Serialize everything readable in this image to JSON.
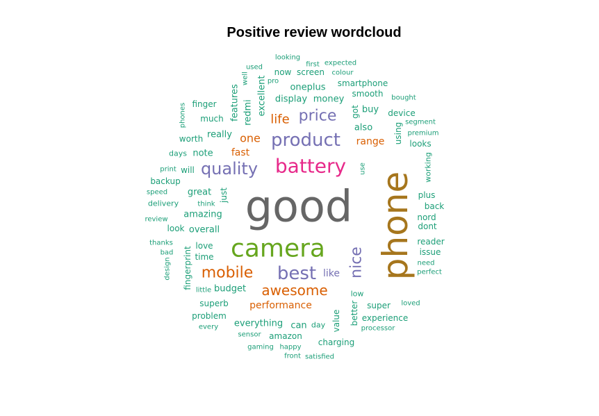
{
  "chart_data": {
    "type": "wordcloud",
    "title": "Positive review wordcloud",
    "palette": {
      "teal": "#1b9e77",
      "orange": "#d95f02",
      "purple": "#7570b3",
      "pink": "#e7298a",
      "green": "#66a61e",
      "mustard": "#a6761d",
      "gray": "#666666"
    },
    "words": [
      {
        "text": "good",
        "size": 62,
        "color": "gray"
      },
      {
        "text": "phone",
        "size": 50,
        "color": "mustard",
        "vertical": true
      },
      {
        "text": "camera",
        "size": 36,
        "color": "green"
      },
      {
        "text": "battery",
        "size": 28,
        "color": "pink"
      },
      {
        "text": "product",
        "size": 26,
        "color": "purple"
      },
      {
        "text": "best",
        "size": 26,
        "color": "purple"
      },
      {
        "text": "quality",
        "size": 24,
        "color": "purple"
      },
      {
        "text": "price",
        "size": 22,
        "color": "purple"
      },
      {
        "text": "mobile",
        "size": 22,
        "color": "orange"
      },
      {
        "text": "nice",
        "size": 22,
        "color": "purple",
        "vertical": true
      },
      {
        "text": "awesome",
        "size": 20,
        "color": "orange"
      },
      {
        "text": "life",
        "size": 18,
        "color": "orange"
      },
      {
        "text": "one",
        "size": 16,
        "color": "orange"
      },
      {
        "text": "like",
        "size": 14,
        "color": "purple"
      },
      {
        "text": "fast",
        "size": 14,
        "color": "orange"
      },
      {
        "text": "range",
        "size": 14,
        "color": "orange"
      },
      {
        "text": "performance",
        "size": 14,
        "color": "orange"
      },
      {
        "text": "great",
        "size": 13,
        "color": "teal"
      },
      {
        "text": "amazing",
        "size": 13,
        "color": "teal"
      },
      {
        "text": "overall",
        "size": 13,
        "color": "teal"
      },
      {
        "text": "budget",
        "size": 13,
        "color": "teal"
      },
      {
        "text": "really",
        "size": 13,
        "color": "teal"
      },
      {
        "text": "note",
        "size": 13,
        "color": "teal"
      },
      {
        "text": "also",
        "size": 13,
        "color": "teal"
      },
      {
        "text": "buy",
        "size": 13,
        "color": "teal"
      },
      {
        "text": "money",
        "size": 13,
        "color": "teal"
      },
      {
        "text": "display",
        "size": 13,
        "color": "teal"
      },
      {
        "text": "oneplus",
        "size": 13,
        "color": "teal"
      },
      {
        "text": "excellent",
        "size": 13,
        "color": "teal",
        "vertical": true
      },
      {
        "text": "features",
        "size": 13,
        "color": "teal",
        "vertical": true
      },
      {
        "text": "redmi",
        "size": 13,
        "color": "teal",
        "vertical": true
      },
      {
        "text": "can",
        "size": 13,
        "color": "teal"
      },
      {
        "text": "everything",
        "size": 13,
        "color": "teal"
      },
      {
        "text": "charging",
        "size": 12,
        "color": "teal"
      },
      {
        "text": "amazon",
        "size": 12,
        "color": "teal"
      },
      {
        "text": "value",
        "size": 12,
        "color": "teal",
        "vertical": true
      },
      {
        "text": "better",
        "size": 12,
        "color": "teal",
        "vertical": true
      },
      {
        "text": "super",
        "size": 12,
        "color": "teal"
      },
      {
        "text": "experience",
        "size": 12,
        "color": "teal"
      },
      {
        "text": "superb",
        "size": 12,
        "color": "teal"
      },
      {
        "text": "problem",
        "size": 12,
        "color": "teal"
      },
      {
        "text": "fingerprint",
        "size": 12,
        "color": "teal",
        "vertical": true
      },
      {
        "text": "love",
        "size": 12,
        "color": "teal"
      },
      {
        "text": "time",
        "size": 12,
        "color": "teal"
      },
      {
        "text": "look",
        "size": 12,
        "color": "teal"
      },
      {
        "text": "just",
        "size": 12,
        "color": "teal",
        "vertical": true
      },
      {
        "text": "much",
        "size": 12,
        "color": "teal"
      },
      {
        "text": "finger",
        "size": 12,
        "color": "teal"
      },
      {
        "text": "worth",
        "size": 12,
        "color": "teal"
      },
      {
        "text": "will",
        "size": 12,
        "color": "teal"
      },
      {
        "text": "backup",
        "size": 12,
        "color": "teal"
      },
      {
        "text": "screen",
        "size": 12,
        "color": "teal"
      },
      {
        "text": "now",
        "size": 12,
        "color": "teal"
      },
      {
        "text": "smartphone",
        "size": 12,
        "color": "teal"
      },
      {
        "text": "smooth",
        "size": 12,
        "color": "teal"
      },
      {
        "text": "got",
        "size": 12,
        "color": "teal",
        "vertical": true
      },
      {
        "text": "using",
        "size": 12,
        "color": "teal",
        "vertical": true
      },
      {
        "text": "device",
        "size": 12,
        "color": "teal"
      },
      {
        "text": "looks",
        "size": 12,
        "color": "teal"
      },
      {
        "text": "plus",
        "size": 12,
        "color": "teal"
      },
      {
        "text": "back",
        "size": 12,
        "color": "teal"
      },
      {
        "text": "nord",
        "size": 12,
        "color": "teal"
      },
      {
        "text": "dont",
        "size": 12,
        "color": "teal"
      },
      {
        "text": "reader",
        "size": 12,
        "color": "teal"
      },
      {
        "text": "issue",
        "size": 12,
        "color": "teal"
      },
      {
        "text": "working",
        "size": 11,
        "color": "teal",
        "vertical": true
      },
      {
        "text": "day",
        "size": 11,
        "color": "teal"
      },
      {
        "text": "delivery",
        "size": 11,
        "color": "teal"
      },
      {
        "text": "days",
        "size": 11,
        "color": "teal"
      },
      {
        "text": "low",
        "size": 11,
        "color": "teal"
      },
      {
        "text": "use",
        "size": 10,
        "color": "teal",
        "vertical": true
      },
      {
        "text": "looking",
        "size": 10,
        "color": "teal"
      },
      {
        "text": "first",
        "size": 10,
        "color": "teal"
      },
      {
        "text": "expected",
        "size": 10,
        "color": "teal"
      },
      {
        "text": "colour",
        "size": 10,
        "color": "teal"
      },
      {
        "text": "used",
        "size": 10,
        "color": "teal"
      },
      {
        "text": "well",
        "size": 10,
        "color": "teal",
        "vertical": true
      },
      {
        "text": "pro",
        "size": 10,
        "color": "teal"
      },
      {
        "text": "bought",
        "size": 10,
        "color": "teal"
      },
      {
        "text": "segment",
        "size": 10,
        "color": "teal"
      },
      {
        "text": "premium",
        "size": 10,
        "color": "teal"
      },
      {
        "text": "phones",
        "size": 10,
        "color": "teal",
        "vertical": true
      },
      {
        "text": "print",
        "size": 10,
        "color": "teal"
      },
      {
        "text": "speed",
        "size": 10,
        "color": "teal"
      },
      {
        "text": "think",
        "size": 10,
        "color": "teal"
      },
      {
        "text": "review",
        "size": 10,
        "color": "teal"
      },
      {
        "text": "thanks",
        "size": 10,
        "color": "teal"
      },
      {
        "text": "bad",
        "size": 10,
        "color": "teal"
      },
      {
        "text": "design",
        "size": 10,
        "color": "teal",
        "vertical": true
      },
      {
        "text": "little",
        "size": 10,
        "color": "teal"
      },
      {
        "text": "every",
        "size": 10,
        "color": "teal"
      },
      {
        "text": "sensor",
        "size": 10,
        "color": "teal"
      },
      {
        "text": "gaming",
        "size": 10,
        "color": "teal"
      },
      {
        "text": "happy",
        "size": 10,
        "color": "teal"
      },
      {
        "text": "front",
        "size": 10,
        "color": "teal"
      },
      {
        "text": "satisfied",
        "size": 10,
        "color": "teal"
      },
      {
        "text": "processor",
        "size": 10,
        "color": "teal"
      },
      {
        "text": "loved",
        "size": 10,
        "color": "teal"
      },
      {
        "text": "need",
        "size": 10,
        "color": "teal"
      },
      {
        "text": "perfect",
        "size": 10,
        "color": "teal"
      }
    ]
  }
}
